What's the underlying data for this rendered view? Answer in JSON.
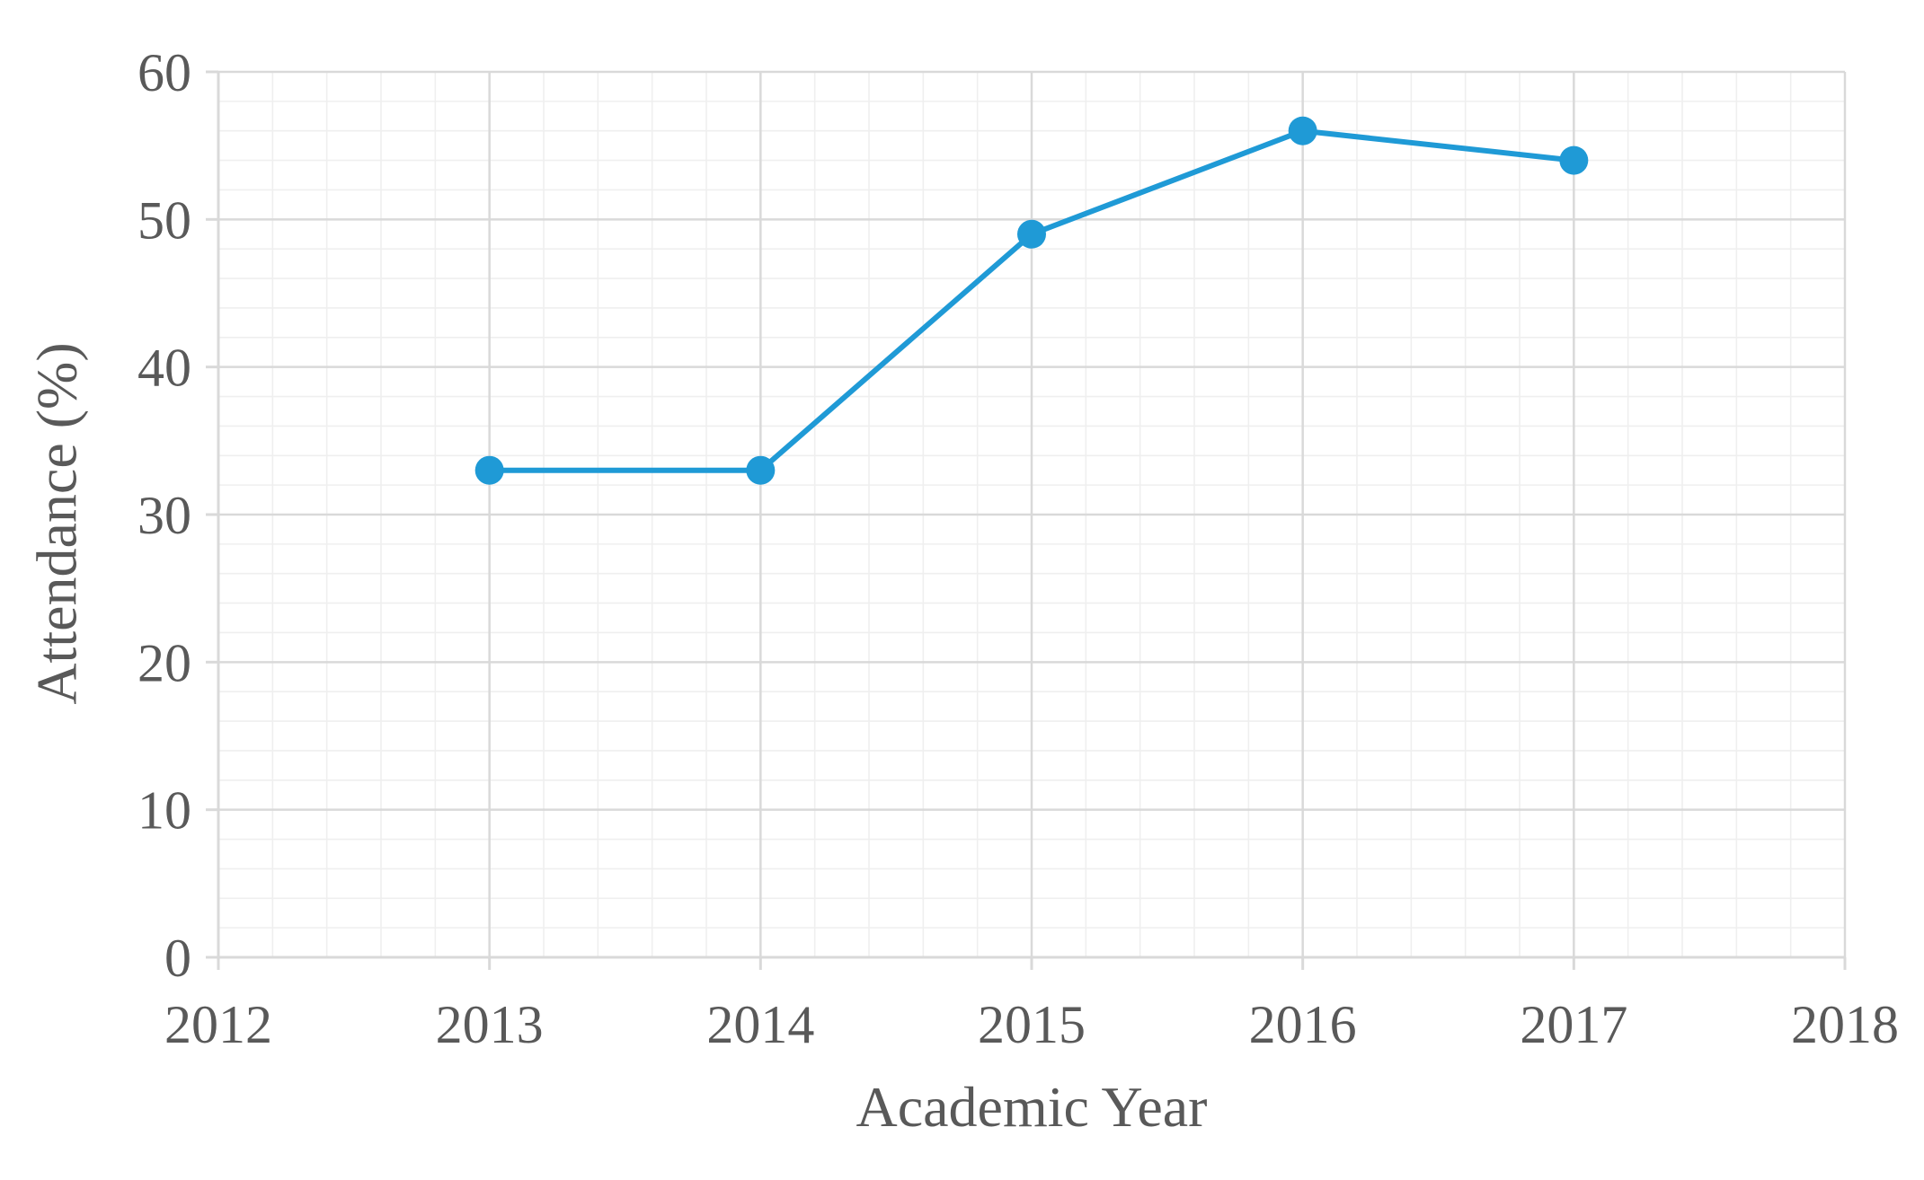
{
  "chart_data": {
    "type": "scatter",
    "title": "",
    "xlabel": "Academic Year",
    "ylabel": "Attendance  (%)",
    "xlim": [
      2012,
      2018
    ],
    "ylim": [
      0,
      60
    ],
    "xticks": [
      "2012",
      "2013",
      "2014",
      "2015",
      "2016",
      "2017",
      "2018"
    ],
    "yticks": [
      "0",
      "10",
      "20",
      "30",
      "40",
      "50",
      "60"
    ],
    "grid": true,
    "minor_grid": true,
    "legend": "none",
    "series": [
      {
        "x": [
          2013,
          2014,
          2015,
          2016,
          2017
        ],
        "y": [
          33,
          33,
          49,
          56,
          54
        ],
        "color": "#1f9ad6",
        "marker": "circle",
        "line": "solid"
      }
    ]
  }
}
